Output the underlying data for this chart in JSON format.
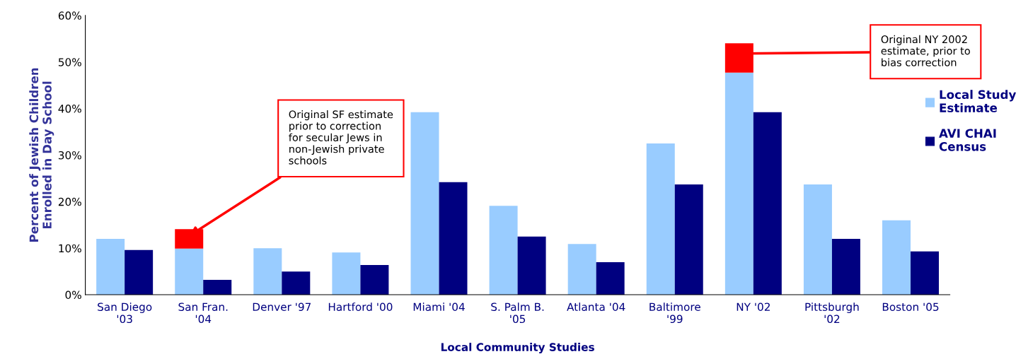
{
  "chart_data": {
    "type": "bar",
    "xlabel": "Local Community Studies",
    "ylabel": "Percent of Jewish Children\nEnrolled in Day School",
    "categories": [
      "San Diego\n'03",
      "San Fran.\n'04",
      "Denver '97",
      "Hartford '00",
      "Miami '04",
      "S. Palm B.\n'05",
      "Atlanta '04",
      "Baltimore\n'99",
      "NY '02",
      "Pittsburgh\n'02",
      "Boston '05"
    ],
    "series": [
      {
        "name": "Local Study\nEstimate",
        "color": "#99ccff",
        "values": [
          12.0,
          9.9,
          10.0,
          9.1,
          39.2,
          19.1,
          10.9,
          32.5,
          47.7,
          23.7,
          16.0
        ]
      },
      {
        "color": "#ff0000",
        "base": [
          null,
          9.9,
          null,
          null,
          null,
          null,
          null,
          null,
          47.7,
          null,
          null
        ],
        "values": [
          null,
          4.2,
          null,
          null,
          null,
          null,
          null,
          null,
          6.3,
          null,
          null
        ]
      },
      {
        "name": "AVI CHAI\nCensus",
        "color": "#000080",
        "values": [
          9.6,
          3.2,
          5.0,
          6.4,
          24.2,
          12.5,
          7.0,
          23.7,
          39.2,
          12.0,
          9.3
        ]
      }
    ],
    "ylim": [
      0,
      60
    ],
    "yticks": [
      {
        "value": 0,
        "label": "0%"
      },
      {
        "value": 10,
        "label": "10%"
      },
      {
        "value": 20,
        "label": "20%"
      },
      {
        "value": 30,
        "label": "30%"
      },
      {
        "value": 40,
        "label": "40%"
      },
      {
        "value": 50,
        "label": "50%"
      },
      {
        "value": 60,
        "label": "60%"
      }
    ],
    "grid": false,
    "legend": "right",
    "annotations": [
      "Original SF estimate\nprior to correction\nfor secular Jews in\nnon-Jewish private\nschools",
      "Original NY 2002\nestimate, prior to\nbias correction"
    ]
  }
}
